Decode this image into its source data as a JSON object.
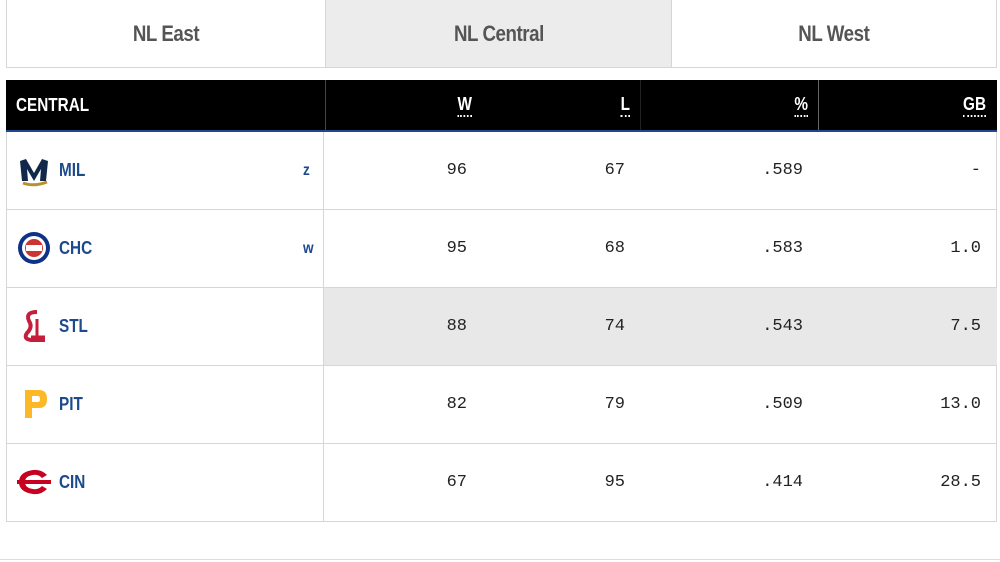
{
  "tabs": [
    "NL East",
    "NL Central",
    "NL West"
  ],
  "active_tab": 1,
  "table": {
    "header": [
      "CENTRAL",
      "W",
      "L",
      "%",
      "GB"
    ],
    "rows": [
      {
        "team": "MIL",
        "clinch": "z",
        "cells": [
          "96",
          "67",
          ".589",
          "-"
        ],
        "logo": "mil"
      },
      {
        "team": "CHC",
        "clinch": "w",
        "cells": [
          "95",
          "68",
          ".583",
          "1.0"
        ],
        "logo": "chc"
      },
      {
        "team": "STL",
        "clinch": null,
        "cells": [
          "88",
          "74",
          ".543",
          "7.5"
        ],
        "logo": "stl"
      },
      {
        "team": "PIT",
        "clinch": null,
        "cells": [
          "82",
          "79",
          ".509",
          "13.0"
        ],
        "logo": "pit"
      },
      {
        "team": "CIN",
        "clinch": null,
        "cells": [
          "67",
          "95",
          ".414",
          "28.5"
        ],
        "logo": "cin"
      }
    ],
    "highlight_row": 2
  }
}
